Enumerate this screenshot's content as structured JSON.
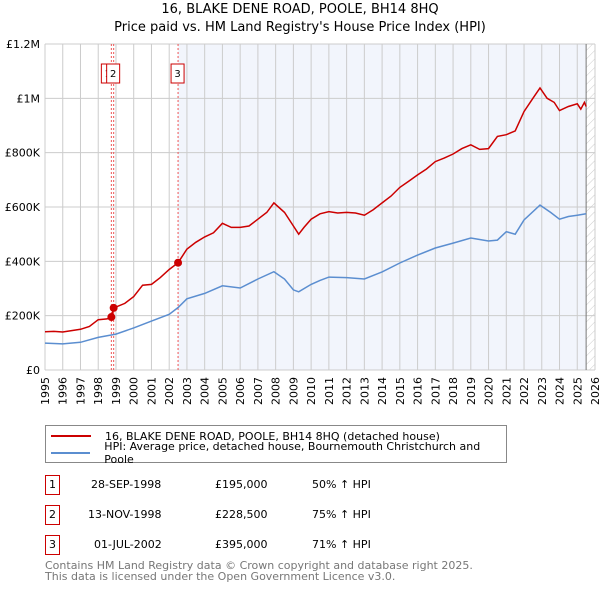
{
  "title": "16, BLAKE DENE ROAD, POOLE, BH14 8HQ",
  "subtitle": "Price paid vs. HM Land Registry's House Price Index (HPI)",
  "chart_data": {
    "type": "line",
    "title": "16, BLAKE DENE ROAD, POOLE, BH14 8HQ",
    "subtitle": "Price paid vs. HM Land Registry's House Price Index (HPI)",
    "xlim": [
      1995,
      2026
    ],
    "ylim": [
      0,
      1200000
    ],
    "x_ticks": [
      "1995",
      "1996",
      "1997",
      "1998",
      "1999",
      "2000",
      "2001",
      "2002",
      "2003",
      "2004",
      "2005",
      "2006",
      "2007",
      "2008",
      "2009",
      "2010",
      "2011",
      "2012",
      "2013",
      "2014",
      "2015",
      "2016",
      "2017",
      "2018",
      "2019",
      "2020",
      "2021",
      "2022",
      "2023",
      "2024",
      "2025",
      "2026"
    ],
    "y_ticks": [
      {
        "v": 0,
        "label": "£0"
      },
      {
        "v": 200000,
        "label": "£200K"
      },
      {
        "v": 400000,
        "label": "£400K"
      },
      {
        "v": 600000,
        "label": "£600K"
      },
      {
        "v": 800000,
        "label": "£800K"
      },
      {
        "v": 1000000,
        "label": "£1M"
      },
      {
        "v": 1200000,
        "label": "£1.2M"
      }
    ],
    "grid": true,
    "shaded_from": 2002.5,
    "data_end": 2025.5,
    "series": [
      {
        "name": "16, BLAKE DENE ROAD, POOLE, BH14 8HQ (detached house)",
        "color": "#cc0000",
        "x": [
          1995,
          1995.5,
          1996,
          1996.5,
          1997,
          1997.5,
          1998,
          1998.5,
          1998.74,
          1998.87,
          1999.5,
          2000,
          2000.5,
          2001,
          2001.5,
          2002,
          2002.5,
          2003,
          2003.5,
          2004,
          2004.5,
          2005,
          2005.5,
          2006,
          2006.5,
          2007,
          2007.5,
          2007.9,
          2008.5,
          2009,
          2009.3,
          2009.6,
          2010,
          2010.5,
          2011,
          2011.5,
          2012,
          2012.5,
          2013,
          2013.5,
          2014,
          2014.5,
          2015,
          2015.5,
          2016,
          2016.5,
          2017,
          2017.5,
          2018,
          2018.5,
          2019,
          2019.5,
          2020,
          2020.5,
          2021,
          2021.5,
          2022,
          2022.5,
          2022.9,
          2023.3,
          2023.7,
          2024,
          2024.5,
          2025,
          2025.2,
          2025.4,
          2025.5
        ],
        "y": [
          141000,
          142000,
          140000,
          145000,
          150000,
          160000,
          185000,
          188000,
          195000,
          228500,
          245000,
          270000,
          312000,
          315000,
          340000,
          370000,
          395000,
          445000,
          470000,
          490000,
          505000,
          540000,
          525000,
          525000,
          530000,
          555000,
          580000,
          615000,
          580000,
          530000,
          500000,
          525000,
          555000,
          575000,
          583000,
          578000,
          580000,
          578000,
          570000,
          590000,
          615000,
          640000,
          672000,
          695000,
          718000,
          740000,
          767000,
          780000,
          795000,
          815000,
          829000,
          812000,
          815000,
          860000,
          866000,
          880000,
          951000,
          1000000,
          1038000,
          1000000,
          985000,
          955000,
          970000,
          980000,
          960000,
          985000,
          970000
        ]
      },
      {
        "name": "HPI: Average price, detached house, Bournemouth Christchurch and Poole",
        "color": "#5b8ed0",
        "x": [
          1995,
          1996,
          1997,
          1998,
          1999,
          2000,
          2001,
          2002,
          2002.5,
          2003,
          2004,
          2005,
          2006,
          2007,
          2007.9,
          2008.5,
          2009,
          2009.3,
          2010,
          2010.5,
          2011,
          2012,
          2013,
          2014,
          2015,
          2016,
          2017,
          2018,
          2019,
          2020,
          2020.5,
          2021,
          2021.5,
          2022,
          2022.9,
          2023.5,
          2024,
          2024.5,
          2025,
          2025.5
        ],
        "y": [
          99000,
          96000,
          102000,
          120000,
          132000,
          155000,
          180000,
          205000,
          230000,
          262000,
          282000,
          310000,
          302000,
          335000,
          362000,
          335000,
          295000,
          288000,
          315000,
          330000,
          342000,
          340000,
          335000,
          361000,
          394000,
          423000,
          449000,
          467000,
          486000,
          475000,
          478000,
          509000,
          500000,
          552000,
          607000,
          580000,
          555000,
          565000,
          570000,
          575000
        ]
      }
    ],
    "sales": [
      {
        "label": "1",
        "x": 1998.74,
        "y": 195000
      },
      {
        "label": "2",
        "x": 1998.87,
        "y": 228500
      },
      {
        "label": "3",
        "x": 2002.5,
        "y": 395000
      }
    ]
  },
  "legend": {
    "property": "16, BLAKE DENE ROAD, POOLE, BH14 8HQ (detached house)",
    "hpi": "HPI: Average price, detached house, Bournemouth Christchurch and Poole"
  },
  "transactions": [
    {
      "num": "1",
      "date": "28-SEP-1998",
      "price": "£195,000",
      "delta": "50% ↑ HPI"
    },
    {
      "num": "2",
      "date": "13-NOV-1998",
      "price": "£228,500",
      "delta": "75% ↑ HPI"
    },
    {
      "num": "3",
      "date": "01-JUL-2002",
      "price": "£395,000",
      "delta": "71% ↑ HPI"
    }
  ],
  "footer": {
    "line1": "Contains HM Land Registry data © Crown copyright and database right 2025.",
    "line2": "This data is licensed under the Open Government Licence v3.0."
  }
}
